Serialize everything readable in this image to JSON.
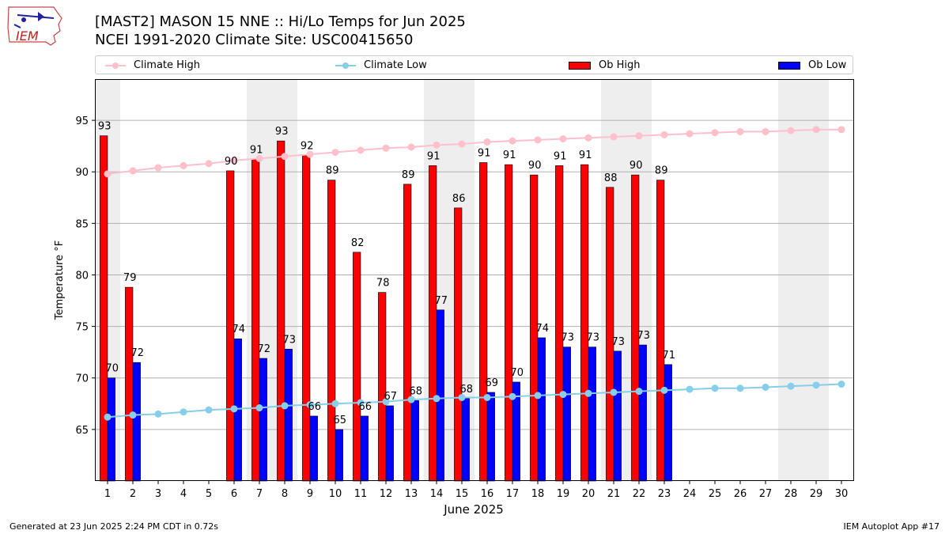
{
  "header": {
    "title_line1": "[MAST2] MASON 15 NNE :: Hi/Lo Temps for Jun 2025",
    "title_line2": "NCEI 1991-2020 Climate Site: USC00415650"
  },
  "logo": {
    "text": "IEM",
    "icon": "iem-iowa-logo"
  },
  "footer": {
    "left": "Generated at 23 Jun 2025 2:24 PM CDT in 0.72s",
    "right": "IEM Autoplot App #17"
  },
  "colors": {
    "ob_high": "#ff0000",
    "ob_low": "#0000ff",
    "climate_high": "#ffc0cb",
    "climate_low": "#87ceeb",
    "weekend_shade": "#eeeeee",
    "grid": "#b0b0b0"
  },
  "chart_data": {
    "type": "bar",
    "xlabel": "June 2025",
    "ylabel": "Temperature °F",
    "ylim": [
      60,
      99
    ],
    "yticks": [
      65,
      70,
      75,
      80,
      85,
      90,
      95
    ],
    "grid": "horizontal",
    "legend_position": "top",
    "categories": [
      1,
      2,
      3,
      4,
      5,
      6,
      7,
      8,
      9,
      10,
      11,
      12,
      13,
      14,
      15,
      16,
      17,
      18,
      19,
      20,
      21,
      22,
      23,
      24,
      25,
      26,
      27,
      28,
      29,
      30
    ],
    "shaded_days": [
      1,
      7,
      8,
      14,
      15,
      21,
      22,
      28,
      29
    ],
    "series": [
      {
        "name": "Climate High",
        "kind": "line",
        "values": [
          89.8,
          90.1,
          90.4,
          90.6,
          90.8,
          91.1,
          91.3,
          91.5,
          91.7,
          91.9,
          92.1,
          92.3,
          92.4,
          92.6,
          92.7,
          92.9,
          93.0,
          93.1,
          93.2,
          93.3,
          93.4,
          93.5,
          93.6,
          93.7,
          93.8,
          93.9,
          93.9,
          94.0,
          94.1,
          94.1
        ]
      },
      {
        "name": "Climate Low",
        "kind": "line",
        "values": [
          66.2,
          66.4,
          66.5,
          66.7,
          66.9,
          67.0,
          67.1,
          67.3,
          67.4,
          67.5,
          67.6,
          67.7,
          67.9,
          68.0,
          68.1,
          68.1,
          68.2,
          68.3,
          68.4,
          68.5,
          68.6,
          68.7,
          68.8,
          68.9,
          69.0,
          69.0,
          69.1,
          69.2,
          69.3,
          69.4
        ]
      },
      {
        "name": "Ob High",
        "kind": "bar",
        "values": [
          93.5,
          78.8,
          null,
          null,
          null,
          90.1,
          91.2,
          93.0,
          91.6,
          89.2,
          82.2,
          78.3,
          88.8,
          90.6,
          86.5,
          90.9,
          90.7,
          89.7,
          90.6,
          90.7,
          88.5,
          89.7,
          89.2,
          null,
          null,
          null,
          null,
          null,
          null,
          null
        ],
        "labels": [
          "93",
          "79",
          "",
          "",
          "",
          "90",
          "91",
          "93",
          "92",
          "89",
          "82",
          "78",
          "89",
          "91",
          "86",
          "91",
          "91",
          "90",
          "91",
          "91",
          "88",
          "90",
          "89",
          "",
          "",
          "",
          "",
          "",
          "",
          ""
        ]
      },
      {
        "name": "Ob Low",
        "kind": "bar",
        "values": [
          70.0,
          71.5,
          null,
          null,
          null,
          73.8,
          71.9,
          72.8,
          66.3,
          65.0,
          66.3,
          67.3,
          67.8,
          76.6,
          68.0,
          68.6,
          69.6,
          73.9,
          73.0,
          73.0,
          72.6,
          73.2,
          71.3,
          null,
          null,
          null,
          null,
          null,
          null,
          null
        ],
        "labels": [
          "70",
          "72",
          "",
          "",
          "",
          "74",
          "72",
          "73",
          "66",
          "65",
          "66",
          "67",
          "68",
          "77",
          "68",
          "69",
          "70",
          "74",
          "73",
          "73",
          "73",
          "73",
          "71",
          "",
          "",
          "",
          "",
          "",
          "",
          ""
        ]
      }
    ]
  }
}
